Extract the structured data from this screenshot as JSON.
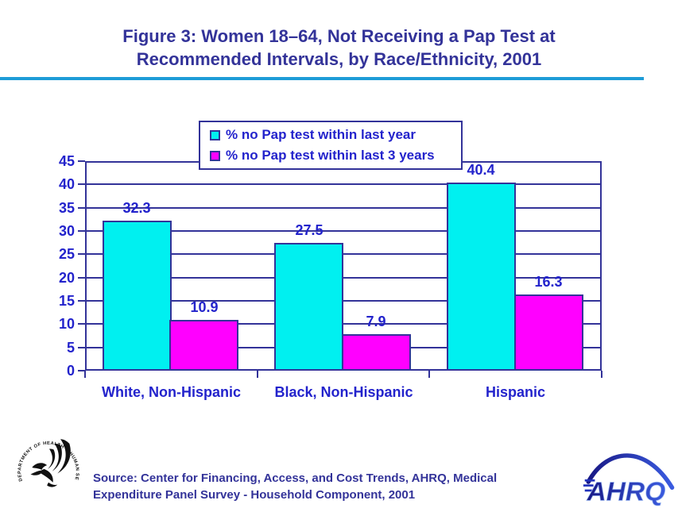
{
  "title": {
    "line1": "Figure 3: Women 18–64, Not Receiving a Pap Test at",
    "line2": "Recommended Intervals, by Race/Ethnicity, 2001"
  },
  "chart_data": {
    "type": "bar",
    "title": "Figure 3: Women 18–64, Not Receiving a Pap Test at Recommended Intervals, by Race/Ethnicity, 2001",
    "categories": [
      "White, Non-Hispanic",
      "Black, Non-Hispanic",
      "Hispanic"
    ],
    "series": [
      {
        "name": "% no Pap test within last year",
        "color": "#00F0F0",
        "values": [
          32.3,
          27.5,
          40.4
        ]
      },
      {
        "name": "% no Pap test within last 3 years",
        "color": "#FF00FF",
        "values": [
          10.9,
          7.9,
          16.3
        ]
      }
    ],
    "xlabel": "",
    "ylabel": "",
    "ylim": [
      0,
      45
    ],
    "yticks": [
      0,
      5,
      10,
      15,
      20,
      25,
      30,
      35,
      40,
      45
    ],
    "grid": true,
    "legend_position": "top-center",
    "value_labels_shown": true
  },
  "footer": {
    "source_line1": "Source:  Center for Financing, Access, and Cost Trends, AHRQ, Medical",
    "source_line2": "Expenditure Panel Survey - Household Component, 2001",
    "hhs_logo_text": "DEPARTMENT OF HEALTH & HUMAN SERVICES USA",
    "ahrq_logo_text": "AHRQ"
  },
  "colors": {
    "accent_navy": "#333399",
    "label_blue": "#2323CC",
    "bar_cyan": "#00F0F0",
    "bar_magenta": "#FF00FF",
    "title_rule_cyan": "#1E9CD7",
    "background": "#FFFFFF"
  }
}
